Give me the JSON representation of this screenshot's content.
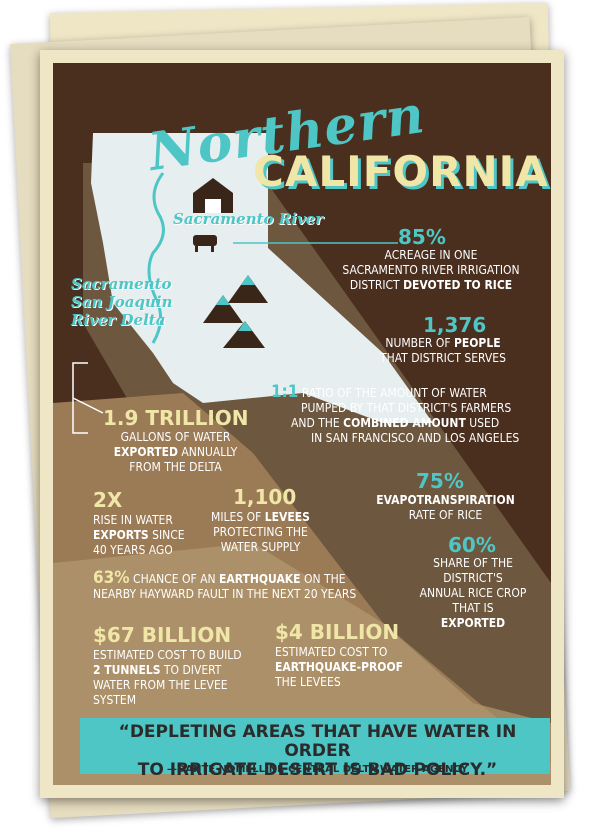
{
  "title": {
    "line1": "Northern",
    "line2": "CALIFORNIA"
  },
  "map_labels": {
    "river": "Sacramento River",
    "delta_line1": "Sacramento",
    "delta_line2": "San Joaquin",
    "delta_line3": "River Delta"
  },
  "stats": {
    "s85": {
      "value": "85%",
      "l1": "ACREAGE IN ONE",
      "l2": "SACRAMENTO RIVER IRRIGATION",
      "l3a": "DISTRICT ",
      "l3b": "DEVOTED TO RICE"
    },
    "s1376": {
      "value": "1,376",
      "l1a": "NUMBER OF ",
      "l1b": "PEOPLE",
      "l2": "THAT DISTRICT SERVES"
    },
    "s11": {
      "value": "1:1",
      "l1": " RATIO OF THE AMOUNT OF WATER",
      "l2": "PUMPED BY THAT DISTRICT'S FARMERS",
      "l3a": "AND THE ",
      "l3b": "COMBINED AMOUNT",
      "l3c": " USED",
      "l4": "IN SAN FRANCISCO AND LOS ANGELES"
    },
    "s19": {
      "value": "1.9 TRILLION",
      "l1": "GALLONS OF WATER",
      "l2a": "EXPORTED",
      "l2b": " ANNUALLY",
      "l3": "FROM THE DELTA"
    },
    "s75": {
      "value": "75%",
      "l1": "EVAPOTRANSPIRATION",
      "l2": "RATE OF RICE"
    },
    "s2x": {
      "value": "2X",
      "l1": "RISE IN WATER",
      "l2a": "EXPORTS",
      "l2b": " SINCE",
      "l3": "40 YEARS AGO"
    },
    "s1100": {
      "value": "1,100",
      "l1a": "MILES OF ",
      "l1b": "LEVEES",
      "l2": "PROTECTING THE",
      "l3": "WATER SUPPLY"
    },
    "s60": {
      "value": "60%",
      "l1": "SHARE OF THE",
      "l2": "DISTRICT'S",
      "l3": "ANNUAL RICE CROP",
      "l4": "THAT IS",
      "l5": "EXPORTED"
    },
    "s63": {
      "value": "63%",
      "l1a": " CHANCE OF AN ",
      "l1b": "EARTHQUAKE",
      "l1c": " ON THE",
      "l2": "NEARBY HAYWARD FAULT IN THE NEXT 20 YEARS"
    },
    "s67": {
      "value": "$67 BILLION",
      "l1": "ESTIMATED COST TO BUILD",
      "l2a": "2 TUNNELS",
      "l2b": " TO DIVERT",
      "l3": "WATER FROM THE LEVEE",
      "l4": "SYSTEM"
    },
    "s4": {
      "value": "$4 BILLION",
      "l1": "ESTIMATED COST TO",
      "l2": "EARTHQUAKE-PROOF",
      "l3": "THE LEVEES"
    }
  },
  "quote": {
    "text_line1": "“DEPLETING AREAS THAT HAVE WATER IN ORDER",
    "text_line2": "TO IRRIGATE DESERT IS BAD POLICY.”",
    "attribution": "—DANTE NOMELLINI, CENTRAL DELTA WATER AGENCY"
  },
  "colors": {
    "brown": "#4a2e1e",
    "cyan": "#4fc6c6",
    "cream": "#efe6c6",
    "gold": "#f0e6a8",
    "tan": "#9b7a56"
  }
}
